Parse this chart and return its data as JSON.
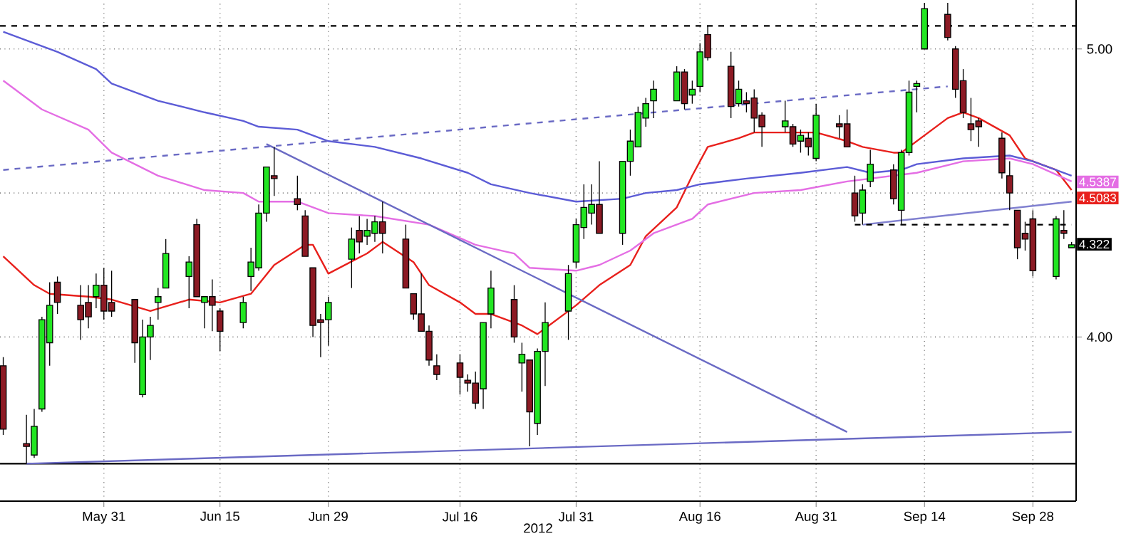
{
  "chart_data": {
    "type": "candlestick",
    "xlabel": "2012",
    "x": [
      "2012-05-18",
      "2012-05-21",
      "2012-05-22",
      "2012-05-23",
      "2012-05-24",
      "2012-05-25",
      "2012-05-28",
      "2012-05-29",
      "2012-05-30",
      "2012-05-31",
      "2012-06-01",
      "2012-06-04",
      "2012-06-05",
      "2012-06-06",
      "2012-06-07",
      "2012-06-08",
      "2012-06-11",
      "2012-06-12",
      "2012-06-13",
      "2012-06-14",
      "2012-06-15",
      "2012-06-18",
      "2012-06-19",
      "2012-06-20",
      "2012-06-21",
      "2012-06-22",
      "2012-06-25",
      "2012-06-26",
      "2012-06-27",
      "2012-06-28",
      "2012-06-29",
      "2012-07-02",
      "2012-07-03",
      "2012-07-04",
      "2012-07-05",
      "2012-07-06",
      "2012-07-09",
      "2012-07-10",
      "2012-07-11",
      "2012-07-12",
      "2012-07-13",
      "2012-07-16",
      "2012-07-17",
      "2012-07-18",
      "2012-07-19",
      "2012-07-20",
      "2012-07-23",
      "2012-07-24",
      "2012-07-25",
      "2012-07-26",
      "2012-07-27",
      "2012-07-30",
      "2012-07-31",
      "2012-08-01",
      "2012-08-02",
      "2012-08-03",
      "2012-08-06",
      "2012-08-07",
      "2012-08-08",
      "2012-08-09",
      "2012-08-10",
      "2012-08-13",
      "2012-08-14",
      "2012-08-15",
      "2012-08-16",
      "2012-08-17",
      "2012-08-20",
      "2012-08-21",
      "2012-08-22",
      "2012-08-23",
      "2012-08-24",
      "2012-08-27",
      "2012-08-28",
      "2012-08-29",
      "2012-08-30",
      "2012-08-31",
      "2012-09-03",
      "2012-09-04",
      "2012-09-05",
      "2012-09-06",
      "2012-09-07",
      "2012-09-10",
      "2012-09-11",
      "2012-09-12",
      "2012-09-13",
      "2012-09-14",
      "2012-09-17",
      "2012-09-18",
      "2012-09-19",
      "2012-09-20",
      "2012-09-21",
      "2012-09-24",
      "2012-09-25",
      "2012-09-26",
      "2012-09-27",
      "2012-09-28",
      "2012-10-01",
      "2012-10-02",
      "2012-10-03"
    ],
    "ohlc": [
      [
        3.9,
        3.93,
        3.66,
        3.68
      ],
      [
        3.63,
        3.73,
        3.56,
        3.62
      ],
      [
        3.59,
        3.75,
        3.58,
        3.69
      ],
      [
        3.75,
        4.07,
        3.74,
        4.06
      ],
      [
        3.98,
        4.19,
        3.9,
        4.11
      ],
      [
        4.19,
        4.21,
        4.08,
        4.12
      ],
      [
        4.11,
        4.18,
        3.99,
        4.06
      ],
      [
        4.12,
        4.18,
        4.03,
        4.07
      ],
      [
        4.14,
        4.22,
        4.1,
        4.18
      ],
      [
        4.18,
        4.24,
        4.06,
        4.09
      ],
      [
        4.12,
        4.23,
        4.07,
        4.09
      ],
      [
        4.13,
        4.13,
        3.91,
        3.98
      ],
      [
        3.8,
        4.06,
        3.79,
        4.0
      ],
      [
        4.0,
        4.07,
        3.92,
        4.04
      ],
      [
        4.12,
        4.17,
        4.06,
        4.14
      ],
      [
        4.17,
        4.34,
        4.17,
        4.29
      ],
      [
        4.21,
        4.28,
        4.1,
        4.26
      ],
      [
        4.39,
        4.41,
        4.14,
        4.14
      ],
      [
        4.12,
        4.14,
        4.03,
        4.14
      ],
      [
        4.14,
        4.2,
        4.02,
        4.11
      ],
      [
        4.09,
        4.1,
        3.95,
        4.02
      ],
      [
        4.05,
        4.14,
        4.03,
        4.12
      ],
      [
        4.21,
        4.31,
        4.16,
        4.26
      ],
      [
        4.24,
        4.46,
        4.23,
        4.43
      ],
      [
        4.43,
        4.59,
        4.4,
        4.59
      ],
      [
        4.56,
        4.66,
        4.49,
        4.55
      ],
      [
        4.48,
        4.56,
        4.44,
        4.46
      ],
      [
        4.42,
        4.44,
        4.28,
        4.28
      ],
      [
        4.24,
        4.24,
        4.0,
        4.04
      ],
      [
        4.06,
        4.08,
        3.93,
        4.05
      ],
      [
        4.06,
        4.14,
        3.97,
        4.12
      ],
      [
        4.27,
        4.38,
        4.17,
        4.34
      ],
      [
        4.37,
        4.42,
        4.29,
        4.33
      ],
      [
        4.35,
        4.41,
        4.32,
        4.37
      ],
      [
        4.36,
        4.42,
        4.33,
        4.4
      ],
      [
        4.4,
        4.47,
        4.29,
        4.36
      ],
      [
        4.34,
        4.39,
        4.17,
        4.17
      ],
      [
        4.15,
        4.15,
        4.06,
        4.08
      ],
      [
        4.08,
        4.22,
        4.02,
        4.02
      ],
      [
        4.02,
        4.04,
        3.9,
        3.92
      ],
      [
        3.9,
        3.94,
        3.85,
        3.87
      ],
      [
        3.91,
        3.94,
        3.8,
        3.86
      ],
      [
        3.85,
        3.87,
        3.81,
        3.84
      ],
      [
        3.84,
        3.88,
        3.75,
        3.77
      ],
      [
        3.82,
        4.05,
        3.75,
        4.05
      ],
      [
        4.08,
        4.23,
        4.03,
        4.17
      ],
      [
        4.13,
        4.18,
        3.98,
        4.0
      ],
      [
        3.91,
        3.98,
        3.81,
        3.94
      ],
      [
        3.92,
        3.92,
        3.62,
        3.74
      ],
      [
        3.7,
        3.96,
        3.66,
        3.95
      ],
      [
        3.95,
        4.12,
        3.83,
        4.05
      ],
      [
        4.09,
        4.25,
        3.99,
        4.22
      ],
      [
        4.26,
        4.41,
        4.24,
        4.39
      ],
      [
        4.38,
        4.53,
        4.34,
        4.45
      ],
      [
        4.43,
        4.53,
        4.39,
        4.46
      ],
      [
        4.46,
        4.61,
        4.36,
        4.36
      ],
      [
        4.36,
        4.61,
        4.32,
        4.61
      ],
      [
        4.61,
        4.72,
        4.56,
        4.68
      ],
      [
        4.66,
        4.8,
        4.66,
        4.78
      ],
      [
        4.76,
        4.83,
        4.73,
        4.81
      ],
      [
        4.82,
        4.89,
        4.76,
        4.86
      ],
      [
        4.82,
        4.94,
        4.82,
        4.92
      ],
      [
        4.92,
        4.93,
        4.79,
        4.81
      ],
      [
        4.84,
        4.89,
        4.81,
        4.86
      ],
      [
        4.87,
        5.02,
        4.85,
        4.99
      ],
      [
        5.05,
        5.08,
        4.96,
        4.97
      ],
      [
        4.94,
        4.99,
        4.76,
        4.8
      ],
      [
        4.81,
        4.89,
        4.8,
        4.86
      ],
      [
        4.82,
        4.85,
        4.78,
        4.81
      ],
      [
        4.83,
        4.86,
        4.71,
        4.76
      ],
      [
        4.77,
        4.78,
        4.66,
        4.73
      ],
      [
        4.73,
        4.82,
        4.71,
        4.75
      ],
      [
        4.73,
        4.74,
        4.66,
        4.67
      ],
      [
        4.68,
        4.72,
        4.64,
        4.7
      ],
      [
        4.69,
        4.71,
        4.63,
        4.66
      ],
      [
        4.62,
        4.81,
        4.61,
        4.77
      ],
      [
        4.74,
        4.77,
        4.69,
        4.73
      ],
      [
        4.74,
        4.79,
        4.66,
        4.66
      ],
      [
        4.5,
        4.56,
        4.4,
        4.42
      ],
      [
        4.43,
        4.53,
        4.39,
        4.51
      ],
      [
        4.54,
        4.65,
        4.52,
        4.6
      ],
      [
        4.58,
        4.6,
        4.46,
        4.48
      ],
      [
        4.44,
        4.65,
        4.39,
        4.64
      ],
      [
        4.64,
        4.89,
        4.63,
        4.85
      ],
      [
        4.87,
        4.89,
        4.78,
        4.88
      ],
      [
        5.0,
        5.16,
        5.0,
        5.14
      ],
      [
        5.12,
        5.16,
        5.03,
        5.04
      ],
      [
        5.0,
        5.01,
        4.83,
        4.86
      ],
      [
        4.89,
        4.93,
        4.76,
        4.78
      ],
      [
        4.74,
        4.83,
        4.68,
        4.72
      ],
      [
        4.75,
        4.76,
        4.66,
        4.73
      ],
      [
        4.69,
        4.71,
        4.55,
        4.57
      ],
      [
        4.56,
        4.61,
        4.44,
        4.5
      ],
      [
        4.44,
        4.44,
        4.27,
        4.31
      ],
      [
        4.36,
        4.4,
        4.3,
        4.34
      ],
      [
        4.41,
        4.44,
        4.21,
        4.23
      ],
      [
        4.21,
        4.42,
        4.2,
        4.41
      ],
      [
        4.37,
        4.44,
        4.34,
        4.36
      ],
      [
        4.31,
        4.33,
        4.31,
        4.32
      ]
    ],
    "series": [
      {
        "type": "line",
        "color": "#e8201c",
        "x": [
          "2012-05-18",
          "2012-05-22",
          "2012-05-24",
          "2012-05-29",
          "2012-06-01",
          "2012-06-06",
          "2012-06-11",
          "2012-06-15",
          "2012-06-19",
          "2012-06-22",
          "2012-06-26",
          "2012-06-27",
          "2012-06-29",
          "2012-07-04",
          "2012-07-06",
          "2012-07-10",
          "2012-07-12",
          "2012-07-16",
          "2012-07-18",
          "2012-07-20",
          "2012-07-24",
          "2012-07-26",
          "2012-07-27",
          "2012-07-31",
          "2012-08-03",
          "2012-08-07",
          "2012-08-09",
          "2012-08-13",
          "2012-08-15",
          "2012-08-17",
          "2012-08-21",
          "2012-08-23",
          "2012-08-28",
          "2012-08-31",
          "2012-09-04",
          "2012-09-06",
          "2012-09-10",
          "2012-09-11",
          "2012-09-13",
          "2012-09-17",
          "2012-09-19",
          "2012-09-21",
          "2012-09-25",
          "2012-09-27",
          "2012-10-01",
          "2012-10-03"
        ],
        "values": [
          4.28,
          4.18,
          4.15,
          4.14,
          4.13,
          4.09,
          4.13,
          4.12,
          4.15,
          4.25,
          4.32,
          4.32,
          4.22,
          4.29,
          4.33,
          4.26,
          4.18,
          4.12,
          4.08,
          4.08,
          4.04,
          4.01,
          4.03,
          4.11,
          4.18,
          4.25,
          4.35,
          4.45,
          4.56,
          4.66,
          4.69,
          4.71,
          4.71,
          4.71,
          4.68,
          4.66,
          4.64,
          4.64,
          4.68,
          4.76,
          4.78,
          4.76,
          4.7,
          4.62,
          4.58,
          4.51
        ]
      },
      {
        "type": "line",
        "color": "#5c5cd6",
        "x": [
          "2012-05-18",
          "2012-05-25",
          "2012-05-30",
          "2012-06-01",
          "2012-06-07",
          "2012-06-13",
          "2012-06-18",
          "2012-06-20",
          "2012-06-25",
          "2012-06-29",
          "2012-07-05",
          "2012-07-11",
          "2012-07-17",
          "2012-07-20",
          "2012-07-25",
          "2012-07-31",
          "2012-08-06",
          "2012-08-09",
          "2012-08-13",
          "2012-08-16",
          "2012-08-22",
          "2012-08-29",
          "2012-09-04",
          "2012-09-07",
          "2012-09-11",
          "2012-09-13",
          "2012-09-19",
          "2012-09-25",
          "2012-09-28",
          "2012-10-03"
        ],
        "values": [
          5.06,
          4.99,
          4.93,
          4.88,
          4.82,
          4.78,
          4.75,
          4.73,
          4.72,
          4.68,
          4.66,
          4.62,
          4.57,
          4.53,
          4.5,
          4.47,
          4.48,
          4.5,
          4.51,
          4.53,
          4.55,
          4.57,
          4.59,
          4.57,
          4.58,
          4.6,
          4.62,
          4.63,
          4.61,
          4.56
        ]
      },
      {
        "type": "line",
        "color": "#e46ee4",
        "x": [
          "2012-05-18",
          "2012-05-23",
          "2012-05-29",
          "2012-06-01",
          "2012-06-07",
          "2012-06-13",
          "2012-06-18",
          "2012-06-20",
          "2012-06-25",
          "2012-06-29",
          "2012-07-05",
          "2012-07-12",
          "2012-07-18",
          "2012-07-23",
          "2012-07-25",
          "2012-07-31",
          "2012-08-03",
          "2012-08-07",
          "2012-08-10",
          "2012-08-15",
          "2012-08-17",
          "2012-08-23",
          "2012-08-29",
          "2012-09-04",
          "2012-09-07",
          "2012-09-13",
          "2012-09-19",
          "2012-09-25",
          "2012-09-28",
          "2012-10-03"
        ],
        "values": [
          4.89,
          4.79,
          4.72,
          4.64,
          4.56,
          4.51,
          4.5,
          4.47,
          4.47,
          4.43,
          4.42,
          4.39,
          4.32,
          4.29,
          4.24,
          4.23,
          4.25,
          4.3,
          4.36,
          4.41,
          4.46,
          4.5,
          4.51,
          4.54,
          4.55,
          4.57,
          4.61,
          4.62,
          4.6,
          4.54
        ]
      },
      {
        "type": "line",
        "color": "#6a6ac4",
        "line_style": "dashed",
        "x": [
          "2012-05-18",
          "2012-09-17"
        ],
        "values": [
          4.58,
          4.87
        ]
      },
      {
        "type": "line",
        "color": "#6a6ac4",
        "x": [
          "2012-06-21",
          "2012-09-04"
        ],
        "values": [
          4.67,
          3.67
        ]
      },
      {
        "type": "line",
        "color": "#6a6ac4",
        "x": [
          "2012-05-21",
          "2012-10-03"
        ],
        "values": [
          3.56,
          3.67
        ]
      },
      {
        "type": "line",
        "color": "#8080d0",
        "x": [
          "2012-09-06",
          "2012-10-03"
        ],
        "values": [
          4.39,
          4.47
        ]
      },
      {
        "type": "line",
        "color": "#000000",
        "line_style": "dashed",
        "x": [
          "2012-09-05",
          "2012-10-03"
        ],
        "values": [
          4.39,
          4.39
        ]
      }
    ],
    "xlim": [
      "2012-05-17T14:00",
      "2012-10-03T14:00"
    ],
    "xticks": [
      {
        "value": "2012-05-31",
        "label": "May 31"
      },
      {
        "value": "2012-06-15",
        "label": "Jun 15"
      },
      {
        "value": "2012-06-29",
        "label": "Jun 29"
      },
      {
        "value": "2012-07-16",
        "label": "Jul 16"
      },
      {
        "value": "2012-07-31",
        "label": "Jul 31"
      },
      {
        "value": "2012-08-16",
        "label": "Aug 16"
      },
      {
        "value": "2012-08-31",
        "label": "Aug 31"
      },
      {
        "value": "2012-09-14",
        "label": "Sep 14"
      },
      {
        "value": "2012-09-28",
        "label": "Sep 28"
      }
    ],
    "ylim": [
      3.43,
      5.17
    ],
    "yticks": [
      {
        "value": 4,
        "label": "4.00"
      },
      {
        "value": 4.5,
        "label": null
      },
      {
        "value": 5,
        "label": "5.00"
      }
    ],
    "grid": true,
    "ref_lines": [
      {
        "axis": "y",
        "value": 5.08,
        "color": "#000000",
        "line_style": "dashed"
      },
      {
        "axis": "y",
        "value": 3.56,
        "color": "#000000"
      }
    ],
    "annotations": [
      {
        "text": "4.5387",
        "x": "2012-10-03",
        "y": 4.5387
      },
      {
        "text": "4.5083",
        "x": "2012-10-03",
        "y": 4.5083
      },
      {
        "text": "4.322",
        "x": "2012-10-03",
        "y": 4.322
      }
    ]
  }
}
